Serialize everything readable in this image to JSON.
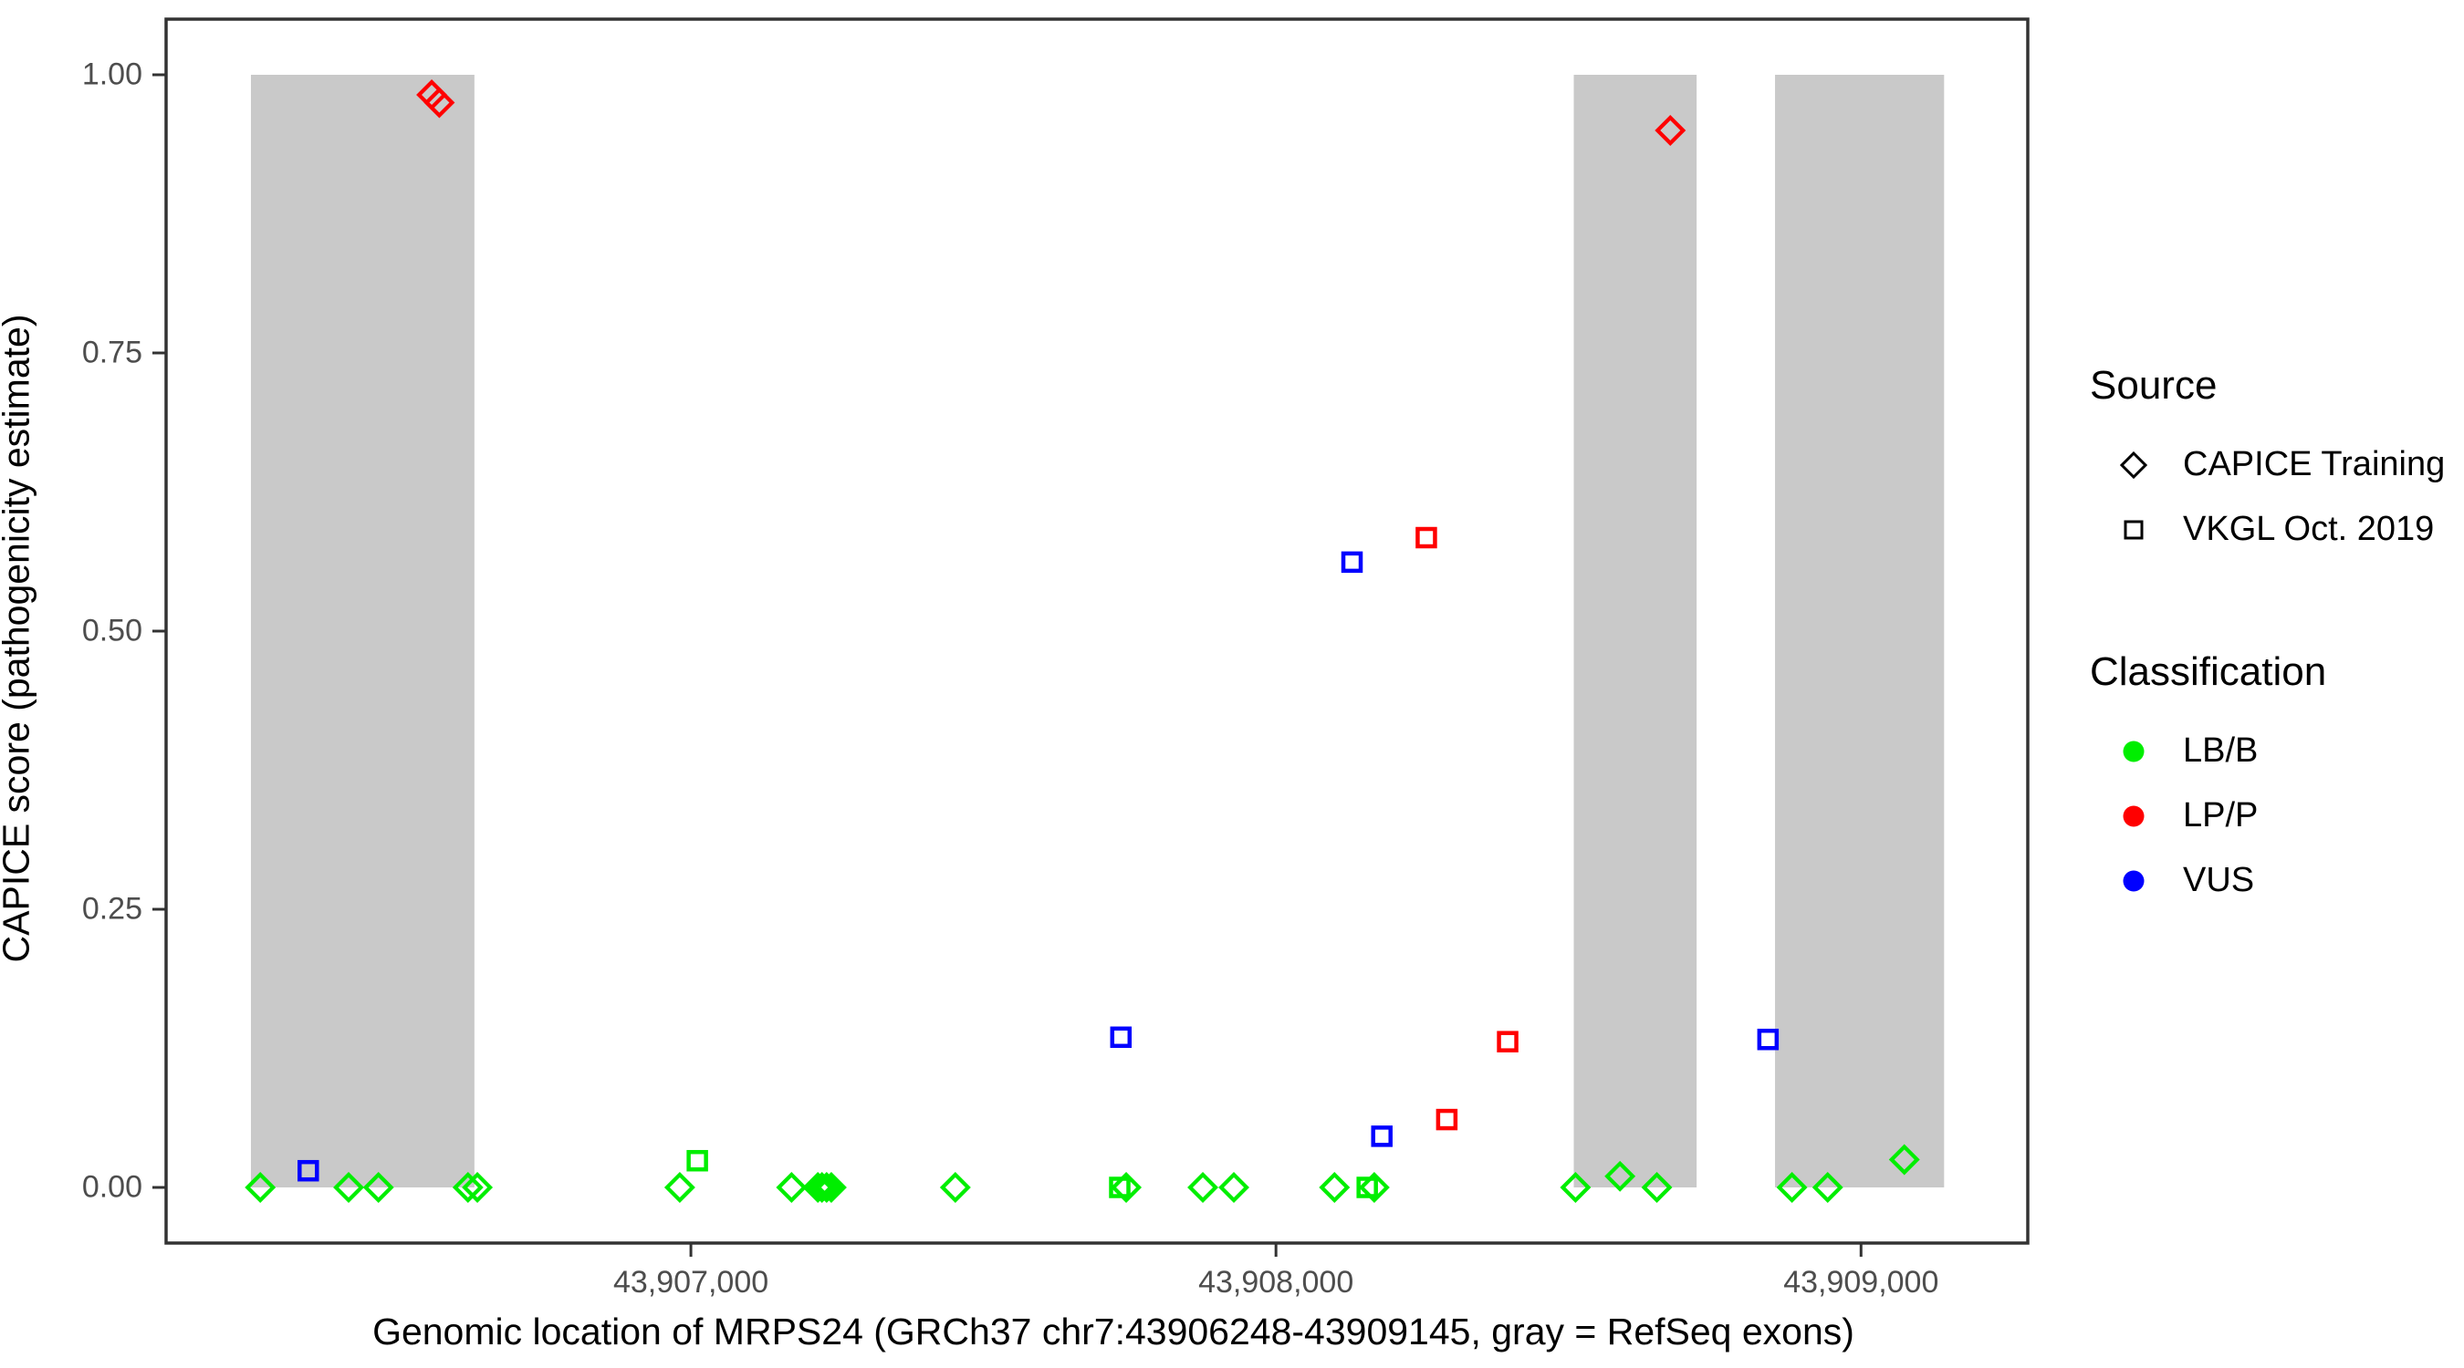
{
  "figure": {
    "x_axis_title": "Genomic location of MRPS24 (GRCh37 chr7:43906248-43909145, gray = RefSeq exons)",
    "y_axis_title": "CAPICE score (pathogenicity estimate)"
  },
  "legend": {
    "source_title": "Source",
    "source_items": [
      {
        "label": "CAPICE Training",
        "marker": "diamond"
      },
      {
        "label": "VKGL Oct. 2019",
        "marker": "square"
      }
    ],
    "classification_title": "Classification",
    "classification_items": [
      {
        "label": "LB/B",
        "color": "#00EE00"
      },
      {
        "label": "LP/P",
        "color": "#FF0000"
      },
      {
        "label": "VUS",
        "color": "#0000FF"
      }
    ]
  },
  "chart_data": {
    "type": "scatter",
    "title": "",
    "xlabel": "Genomic location of MRPS24 (GRCh37 chr7:43906248-43909145, gray = RefSeq exons)",
    "ylabel": "CAPICE score (pathogenicity estimate)",
    "xlim": [
      43906103,
      43909285
    ],
    "ylim": [
      -0.05,
      1.05
    ],
    "grid": false,
    "legend_position": "right",
    "x_ticks": [
      {
        "value": 43907000,
        "label": "43,907,000"
      },
      {
        "value": 43908000,
        "label": "43,908,000"
      },
      {
        "value": 43909000,
        "label": "43,909,000"
      }
    ],
    "y_ticks": [
      {
        "value": 0.0,
        "label": "0.00"
      },
      {
        "value": 0.25,
        "label": "0.25"
      },
      {
        "value": 0.5,
        "label": "0.50"
      },
      {
        "value": 0.75,
        "label": "0.75"
      },
      {
        "value": 1.0,
        "label": "1.00"
      }
    ],
    "exons_note": "gray rectangles = RefSeq exons, spanning y 0 to 1",
    "exons": [
      {
        "start": 43906248,
        "end": 43906630
      },
      {
        "start": 43908509,
        "end": 43908719
      },
      {
        "start": 43908853,
        "end": 43909142
      }
    ],
    "marker_shapes": {
      "CAPICE Training": "diamond",
      "VKGL Oct. 2019": "square"
    },
    "colors": {
      "LB/B": "#00EE00",
      "LP/P": "#FF0000",
      "VUS": "#0000FF",
      "exon": "#C9C9C9",
      "axis": "#333333"
    },
    "points": [
      {
        "x": 43906264,
        "y": 0.0,
        "source": "CAPICE Training",
        "classification": "LB/B"
      },
      {
        "x": 43906415,
        "y": 0.0,
        "source": "CAPICE Training",
        "classification": "LB/B"
      },
      {
        "x": 43906466,
        "y": 0.0,
        "source": "CAPICE Training",
        "classification": "LB/B"
      },
      {
        "x": 43906619,
        "y": 0.0,
        "source": "CAPICE Training",
        "classification": "LB/B"
      },
      {
        "x": 43906635,
        "y": 0.0,
        "source": "CAPICE Training",
        "classification": "LB/B"
      },
      {
        "x": 43906981,
        "y": 0.0,
        "source": "CAPICE Training",
        "classification": "LB/B"
      },
      {
        "x": 43907172,
        "y": 0.0,
        "source": "CAPICE Training",
        "classification": "LB/B"
      },
      {
        "x": 43907217,
        "y": 0.0,
        "source": "CAPICE Training",
        "classification": "LB/B"
      },
      {
        "x": 43907224,
        "y": 0.0,
        "source": "CAPICE Training",
        "classification": "LB/B"
      },
      {
        "x": 43907232,
        "y": 0.0,
        "source": "CAPICE Training",
        "classification": "LB/B"
      },
      {
        "x": 43907240,
        "y": 0.0,
        "source": "CAPICE Training",
        "classification": "LB/B"
      },
      {
        "x": 43907452,
        "y": 0.0,
        "source": "CAPICE Training",
        "classification": "LB/B"
      },
      {
        "x": 43907744,
        "y": 0.0,
        "source": "CAPICE Training",
        "classification": "LB/B"
      },
      {
        "x": 43907875,
        "y": 0.0,
        "source": "CAPICE Training",
        "classification": "LB/B"
      },
      {
        "x": 43907928,
        "y": 0.0,
        "source": "CAPICE Training",
        "classification": "LB/B"
      },
      {
        "x": 43908100,
        "y": 0.0,
        "source": "CAPICE Training",
        "classification": "LB/B"
      },
      {
        "x": 43908168,
        "y": 0.0,
        "source": "CAPICE Training",
        "classification": "LB/B"
      },
      {
        "x": 43908512,
        "y": 0.0,
        "source": "CAPICE Training",
        "classification": "LB/B"
      },
      {
        "x": 43908588,
        "y": 0.01,
        "source": "CAPICE Training",
        "classification": "LB/B"
      },
      {
        "x": 43908651,
        "y": 0.0,
        "source": "CAPICE Training",
        "classification": "LB/B"
      },
      {
        "x": 43908882,
        "y": 0.0,
        "source": "CAPICE Training",
        "classification": "LB/B"
      },
      {
        "x": 43908943,
        "y": 0.0,
        "source": "CAPICE Training",
        "classification": "LB/B"
      },
      {
        "x": 43909074,
        "y": 0.025,
        "source": "CAPICE Training",
        "classification": "LB/B"
      },
      {
        "x": 43906557,
        "y": 0.982,
        "source": "CAPICE Training",
        "classification": "LP/P"
      },
      {
        "x": 43906570,
        "y": 0.975,
        "source": "CAPICE Training",
        "classification": "LP/P"
      },
      {
        "x": 43908674,
        "y": 0.95,
        "source": "CAPICE Training",
        "classification": "LP/P"
      },
      {
        "x": 43907011,
        "y": 0.024,
        "source": "VKGL Oct. 2019",
        "classification": "LB/B"
      },
      {
        "x": 43907733,
        "y": 0.0,
        "source": "VKGL Oct. 2019",
        "classification": "LB/B"
      },
      {
        "x": 43908156,
        "y": 0.0,
        "source": "VKGL Oct. 2019",
        "classification": "LB/B"
      },
      {
        "x": 43906346,
        "y": 0.015,
        "source": "VKGL Oct. 2019",
        "classification": "VUS"
      },
      {
        "x": 43907735,
        "y": 0.135,
        "source": "VKGL Oct. 2019",
        "classification": "VUS"
      },
      {
        "x": 43908130,
        "y": 0.562,
        "source": "VKGL Oct. 2019",
        "classification": "VUS"
      },
      {
        "x": 43908181,
        "y": 0.046,
        "source": "VKGL Oct. 2019",
        "classification": "VUS"
      },
      {
        "x": 43908841,
        "y": 0.133,
        "source": "VKGL Oct. 2019",
        "classification": "VUS"
      },
      {
        "x": 43908257,
        "y": 0.584,
        "source": "VKGL Oct. 2019",
        "classification": "LP/P"
      },
      {
        "x": 43908292,
        "y": 0.061,
        "source": "VKGL Oct. 2019",
        "classification": "LP/P"
      },
      {
        "x": 43908396,
        "y": 0.131,
        "source": "VKGL Oct. 2019",
        "classification": "LP/P"
      }
    ]
  }
}
